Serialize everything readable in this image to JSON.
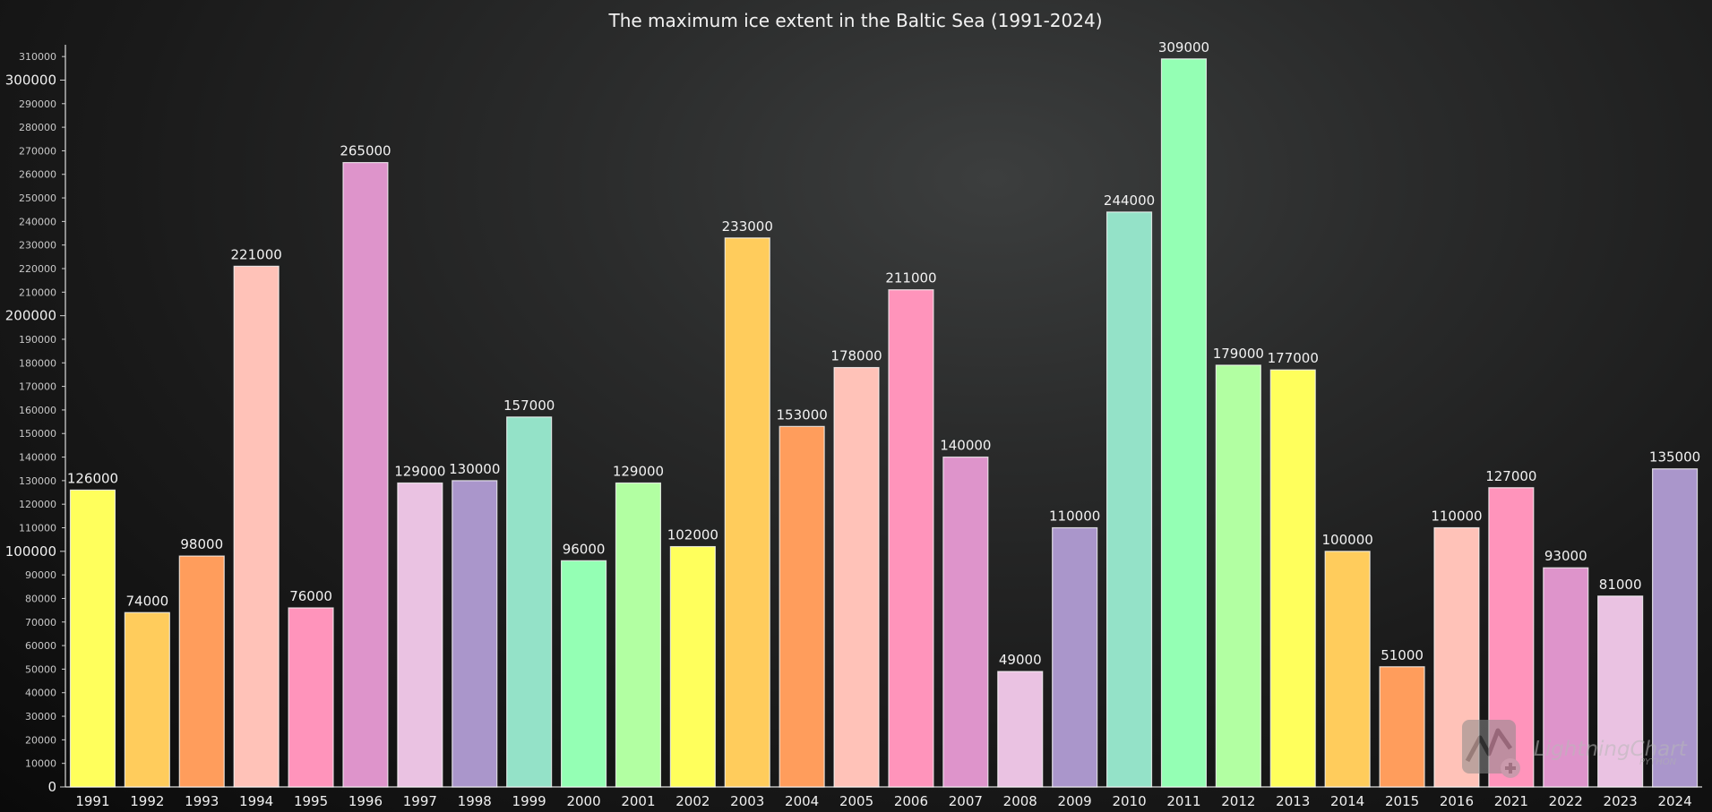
{
  "chart_data": {
    "type": "bar",
    "title": "The maximum ice extent in the Baltic Sea (1991-2024)",
    "xlabel": "",
    "ylabel": "",
    "ylim": [
      0,
      315000
    ],
    "y_major_ticks": [
      0,
      100000,
      200000,
      300000
    ],
    "y_minor_step": 10000,
    "y_minor_max": 310000,
    "grid": false,
    "categories": [
      "1991",
      "1992",
      "1993",
      "1994",
      "1995",
      "1996",
      "1997",
      "1998",
      "1999",
      "2000",
      "2001",
      "2002",
      "2003",
      "2004",
      "2005",
      "2006",
      "2007",
      "2008",
      "2009",
      "2010",
      "2011",
      "2012",
      "2013",
      "2014",
      "2015",
      "2016",
      "2021",
      "2022",
      "2023",
      "2024"
    ],
    "values": [
      126000,
      74000,
      98000,
      221000,
      76000,
      265000,
      129000,
      130000,
      157000,
      96000,
      129000,
      102000,
      233000,
      153000,
      178000,
      211000,
      140000,
      49000,
      110000,
      244000,
      309000,
      179000,
      177000,
      100000,
      51000,
      110000,
      127000,
      93000,
      81000,
      135000
    ],
    "colors": [
      "#ffff5c",
      "#ffcc5c",
      "#ff9d5c",
      "#ffc2b8",
      "#ff94bb",
      "#de94cb",
      "#eac2e2",
      "#aa96cb",
      "#94e2c8",
      "#94ffb4",
      "#b2ffa2",
      "#ffff5c",
      "#ffcc5c",
      "#ff9d5c",
      "#ffc2b8",
      "#ff94bb",
      "#de94cb",
      "#eac2e2",
      "#aa96cb",
      "#94e2c8",
      "#94ffb4",
      "#b2ffa2",
      "#ffff5c",
      "#ffcc5c",
      "#ff9d5c",
      "#ffc2b8",
      "#ff94bb",
      "#de94cb",
      "#eac2e2",
      "#aa96cb"
    ]
  },
  "watermark": {
    "text": "LightningChart",
    "sub": "PYTHON"
  }
}
